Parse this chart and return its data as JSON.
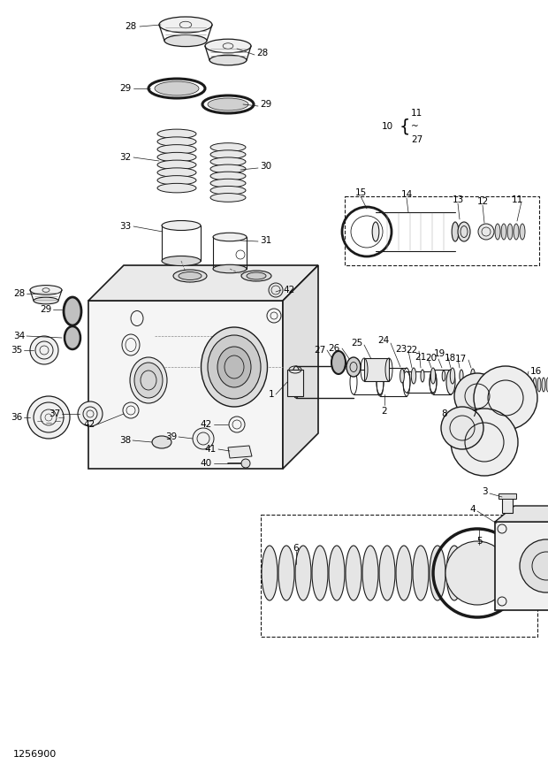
{
  "figure_width": 6.2,
  "figure_height": 8.73,
  "dpi": 100,
  "background_color": "#ffffff",
  "line_color": "#1a1a1a",
  "drawing_number": "1256900",
  "fs": 7.5
}
